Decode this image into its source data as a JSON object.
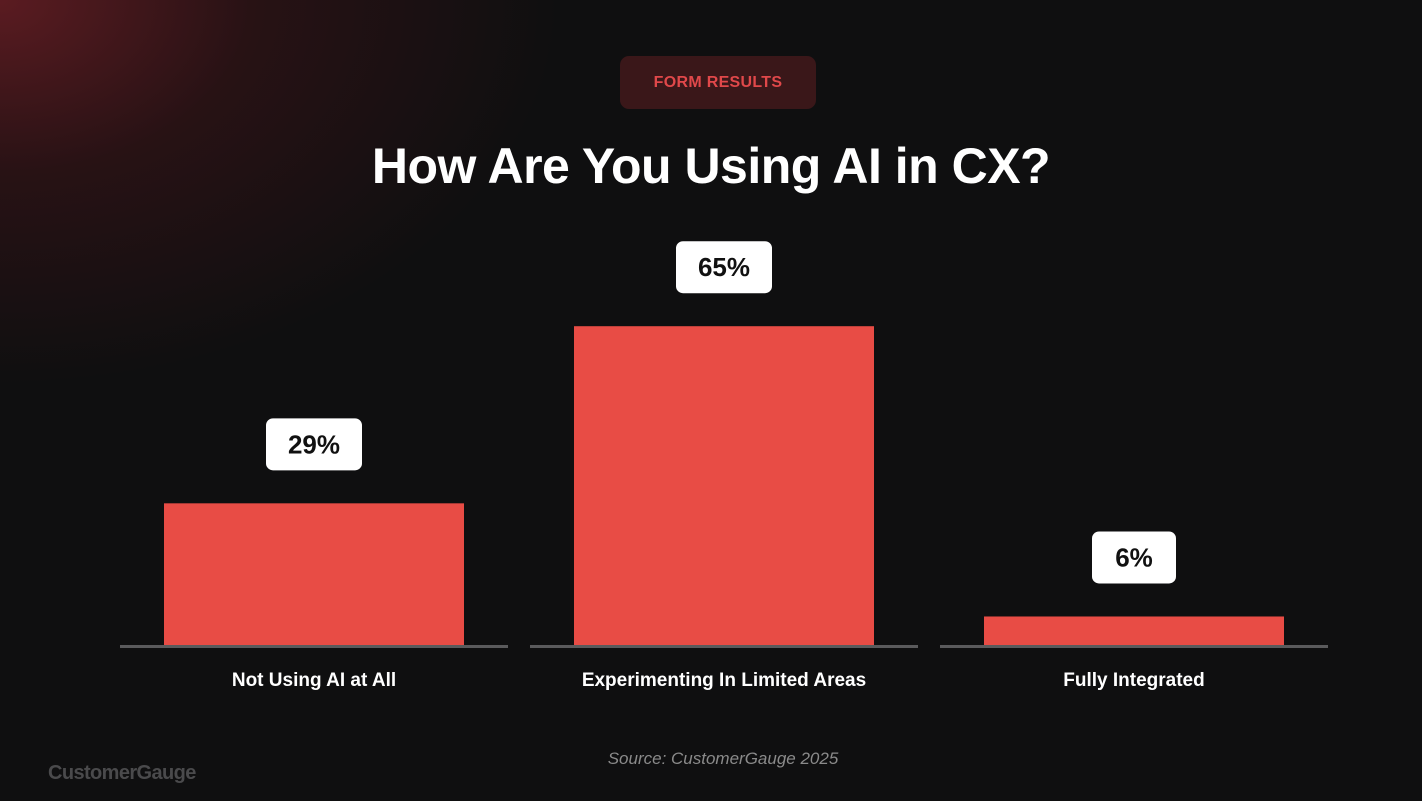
{
  "badge": {
    "label": "FORM RESULTS"
  },
  "colors": {
    "bar": "#e84c45",
    "baseline": "#5a5a5c",
    "label_box": "#ffffff",
    "label_text": "#111111",
    "category_text": "#ffffff"
  },
  "source": "Source: CustomerGauge 2025",
  "logo": "CustomerGauge",
  "chart_data": {
    "type": "bar",
    "title": "How Are You Using AI in CX?",
    "categories": [
      "Not Using AI at All",
      "Experimenting In Limited Areas",
      "Fully Integrated"
    ],
    "values": [
      29,
      65,
      6
    ],
    "value_labels": [
      "29%",
      "65%",
      "6%"
    ],
    "unit": "%",
    "xlabel": "",
    "ylabel": "",
    "grid": false,
    "legend": "none"
  }
}
